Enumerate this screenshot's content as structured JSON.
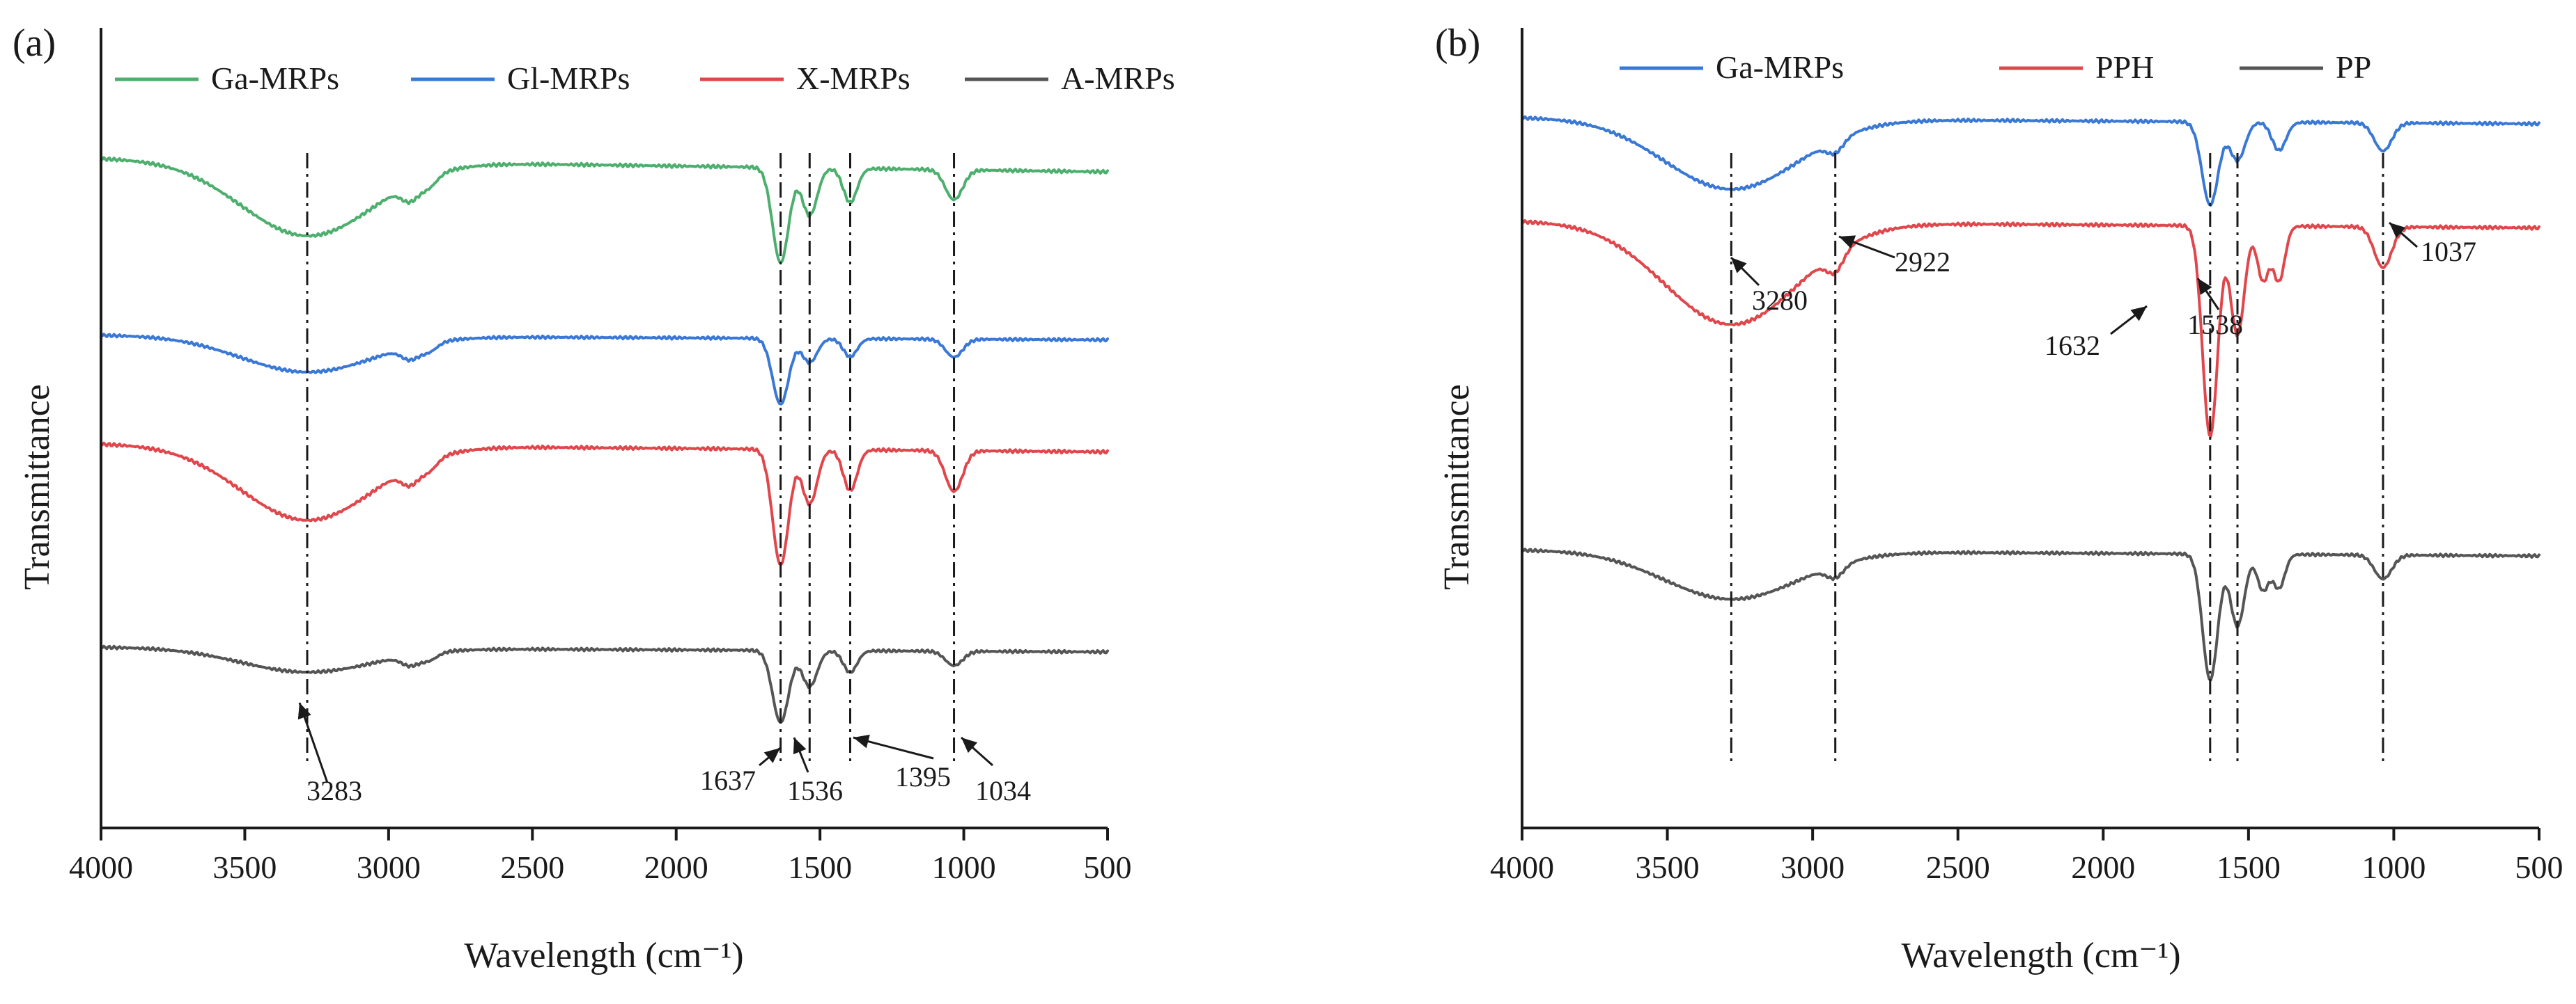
{
  "chart_data": [
    {
      "type": "line",
      "panel_label": "(a)",
      "xlabel": "Wavelength (cm⁻¹)",
      "ylabel": "Transmittance",
      "xlim": [
        4000,
        500
      ],
      "x_reversed": true,
      "x_ticks": [
        4000,
        3500,
        3000,
        2500,
        2000,
        1500,
        1000,
        500
      ],
      "y_ticks_shown": false,
      "legend_position": "top",
      "series": [
        {
          "name": "Ga-MRPs",
          "color": "#4daf6e",
          "offset": 0.82,
          "scale": 0.34,
          "bands": [
            [
              3283,
              0.55,
              230
            ],
            [
              2925,
              0.12,
              30
            ],
            [
              2860,
              0.08,
              30
            ],
            [
              1637,
              0.7,
              28
            ],
            [
              1536,
              0.35,
              26
            ],
            [
              1395,
              0.25,
              24
            ],
            [
              1034,
              0.22,
              30
            ]
          ],
          "drift": 0.1
        },
        {
          "name": "Gl-MRPs",
          "color": "#3a78d6",
          "offset": 0.61,
          "scale": 0.3,
          "bands": [
            [
              3283,
              0.3,
              230
            ],
            [
              2925,
              0.1,
              30
            ],
            [
              2860,
              0.07,
              30
            ],
            [
              1637,
              0.55,
              28
            ],
            [
              1536,
              0.2,
              26
            ],
            [
              1395,
              0.15,
              24
            ],
            [
              1034,
              0.15,
              30
            ]
          ],
          "drift": 0.04
        },
        {
          "name": "X-MRPs",
          "color": "#e0474c",
          "offset": 0.47,
          "scale": 0.34,
          "bands": [
            [
              3283,
              0.55,
              230
            ],
            [
              2925,
              0.12,
              30
            ],
            [
              2860,
              0.08,
              30
            ],
            [
              1637,
              0.85,
              28
            ],
            [
              1536,
              0.4,
              26
            ],
            [
              1395,
              0.3,
              24
            ],
            [
              1034,
              0.3,
              30
            ]
          ],
          "drift": 0.06
        },
        {
          "name": "A-MRPs",
          "color": "#555555",
          "offset": 0.22,
          "scale": 0.3,
          "bands": [
            [
              3283,
              0.2,
              230
            ],
            [
              2925,
              0.08,
              30
            ],
            [
              2860,
              0.06,
              30
            ],
            [
              1637,
              0.6,
              28
            ],
            [
              1536,
              0.3,
              26
            ],
            [
              1395,
              0.18,
              24
            ],
            [
              1034,
              0.12,
              30
            ]
          ],
          "drift": 0.04
        }
      ],
      "reference_lines": [
        3283,
        1637,
        1536,
        1395,
        1034
      ],
      "annotations": [
        {
          "label": "3283",
          "x": 3283
        },
        {
          "label": "1637",
          "x": 1637
        },
        {
          "label": "1536",
          "x": 1536
        },
        {
          "label": "1395",
          "x": 1395
        },
        {
          "label": "1034",
          "x": 1034
        }
      ]
    },
    {
      "type": "line",
      "panel_label": "(b)",
      "xlabel": "Wavelength (cm⁻¹)",
      "ylabel": "Transmittance",
      "xlim": [
        4000,
        500
      ],
      "x_reversed": true,
      "x_ticks": [
        4000,
        3500,
        3000,
        2500,
        2000,
        1500,
        1000,
        500
      ],
      "y_ticks_shown": false,
      "legend_position": "top",
      "series": [
        {
          "name": "Ga-MRPs",
          "color": "#3a78d6",
          "offset": 0.88,
          "scale": 0.32,
          "bands": [
            [
              3280,
              0.55,
              230
            ],
            [
              2922,
              0.1,
              30
            ],
            [
              1632,
              0.65,
              28
            ],
            [
              1538,
              0.3,
              26
            ],
            [
              1395,
              0.22,
              24
            ],
            [
              1037,
              0.22,
              30
            ]
          ],
          "drift": 0.05
        },
        {
          "name": "PPH",
          "color": "#e0474c",
          "offset": 0.75,
          "scale": 0.34,
          "bands": [
            [
              3280,
              0.75,
              230
            ],
            [
              2922,
              0.14,
              30
            ],
            [
              1632,
              1.55,
              26
            ],
            [
              1538,
              0.8,
              24
            ],
            [
              1450,
              0.4,
              20
            ],
            [
              1395,
              0.4,
              20
            ],
            [
              1037,
              0.3,
              30
            ]
          ],
          "drift": 0.05
        },
        {
          "name": "PP",
          "color": "#555555",
          "offset": 0.34,
          "scale": 0.3,
          "bands": [
            [
              3280,
              0.4,
              230
            ],
            [
              2922,
              0.1,
              30
            ],
            [
              1632,
              1.05,
              26
            ],
            [
              1538,
              0.6,
              24
            ],
            [
              1450,
              0.3,
              20
            ],
            [
              1395,
              0.28,
              20
            ],
            [
              1037,
              0.2,
              30
            ]
          ],
          "drift": 0.05
        }
      ],
      "reference_lines": [
        3280,
        2922,
        1632,
        1538,
        1037
      ],
      "annotations": [
        {
          "label": "3280",
          "x": 3280
        },
        {
          "label": "2922",
          "x": 2922
        },
        {
          "label": "1632",
          "x": 1632
        },
        {
          "label": "1538",
          "x": 1538
        },
        {
          "label": "1037",
          "x": 1037
        }
      ]
    }
  ]
}
